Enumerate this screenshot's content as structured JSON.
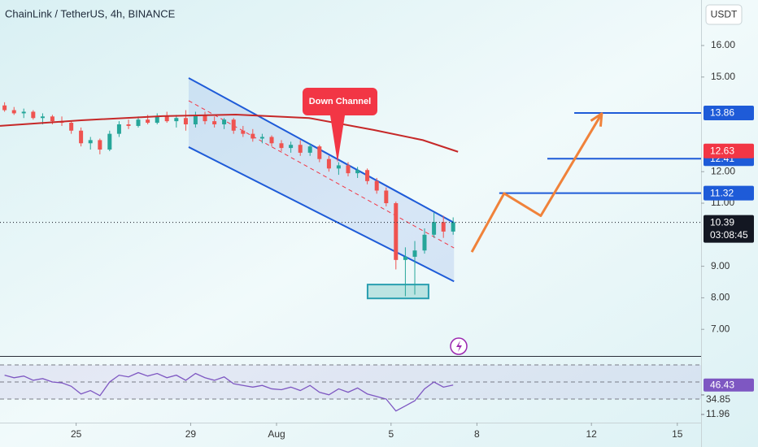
{
  "chart_data": {
    "type": "candlestick",
    "title": "ChainLink / TetherUS, 4h, BINANCE",
    "currency": "USDT",
    "countdown": "03:08:45",
    "annotation": "Down Channel",
    "xlim": [
      -9.66,
      14.83
    ],
    "ylim": [
      6.155,
      17.443
    ],
    "xticks": [
      {
        "value": -7,
        "label": "25"
      },
      {
        "value": -3,
        "label": "29"
      },
      {
        "value": 0,
        "label": "Aug"
      },
      {
        "value": 4,
        "label": "5"
      },
      {
        "value": 7,
        "label": "8"
      },
      {
        "value": 11,
        "label": "12"
      },
      {
        "value": 14,
        "label": "15"
      }
    ],
    "yticks": [
      {
        "value": 16,
        "label": "16.00"
      },
      {
        "value": 15,
        "label": "15.00"
      },
      {
        "value": 12,
        "label": "12.00"
      },
      {
        "value": 11,
        "label": "11.00"
      },
      {
        "value": 9,
        "label": "9.00"
      },
      {
        "value": 8,
        "label": "8.00"
      },
      {
        "value": 7,
        "label": "7.00"
      }
    ],
    "up_color": "#26a69a",
    "down_color": "#ef5350",
    "candles": {
      "x": [
        -9.5,
        -9.17,
        -8.83,
        -8.5,
        -8.17,
        -7.83,
        -7.5,
        -7.17,
        -6.83,
        -6.5,
        -6.17,
        -5.83,
        -5.5,
        -5.17,
        -4.83,
        -4.5,
        -4.17,
        -3.83,
        -3.5,
        -3.17,
        -2.83,
        -2.5,
        -2.17,
        -1.83,
        -1.5,
        -1.17,
        -0.83,
        -0.5,
        -0.17,
        0.17,
        0.5,
        0.83,
        1.17,
        1.5,
        1.83,
        2.17,
        2.5,
        2.83,
        3.17,
        3.5,
        3.83,
        4.17,
        4.5,
        4.83,
        5.17,
        5.5,
        5.83,
        6.17
      ],
      "open": [
        14.1,
        13.95,
        13.85,
        13.9,
        13.7,
        13.75,
        13.6,
        13.55,
        13.3,
        12.9,
        13.0,
        12.7,
        13.2,
        13.5,
        13.45,
        13.65,
        13.55,
        13.75,
        13.6,
        13.7,
        13.5,
        13.8,
        13.6,
        13.5,
        13.65,
        13.3,
        13.2,
        13.05,
        13.1,
        12.9,
        12.75,
        12.85,
        12.6,
        12.8,
        12.4,
        12.1,
        12.2,
        11.95,
        12.05,
        11.7,
        11.4,
        11.0,
        9.2,
        9.3,
        9.5,
        10.0,
        10.4,
        10.1
      ],
      "high": [
        14.2,
        14.05,
        14.0,
        13.95,
        13.85,
        13.8,
        13.75,
        13.6,
        13.4,
        13.1,
        13.05,
        13.3,
        13.6,
        13.65,
        13.75,
        13.8,
        13.85,
        13.9,
        13.8,
        13.95,
        13.9,
        13.9,
        13.75,
        13.7,
        13.7,
        13.45,
        13.35,
        13.2,
        13.15,
        13.0,
        12.95,
        13.0,
        12.9,
        12.85,
        12.5,
        12.3,
        12.3,
        12.15,
        12.1,
        11.8,
        11.5,
        11.05,
        9.6,
        9.8,
        10.2,
        10.7,
        10.6,
        10.55
      ],
      "low": [
        13.9,
        13.8,
        13.7,
        13.65,
        13.5,
        13.5,
        13.45,
        13.2,
        12.8,
        12.7,
        12.55,
        12.65,
        13.1,
        13.35,
        13.4,
        13.5,
        13.5,
        13.55,
        13.4,
        13.3,
        13.4,
        13.5,
        13.4,
        13.35,
        13.2,
        13.1,
        12.95,
        12.9,
        12.8,
        12.65,
        12.6,
        12.5,
        12.5,
        12.3,
        12.0,
        11.9,
        11.85,
        11.8,
        11.6,
        11.3,
        10.9,
        8.9,
        8.05,
        8.1,
        9.4,
        9.9,
        9.9,
        10.0
      ],
      "close": [
        13.95,
        13.85,
        13.9,
        13.7,
        13.75,
        13.6,
        13.55,
        13.3,
        12.9,
        13.0,
        12.7,
        13.2,
        13.5,
        13.45,
        13.65,
        13.55,
        13.75,
        13.6,
        13.7,
        13.5,
        13.8,
        13.6,
        13.5,
        13.65,
        13.3,
        13.2,
        13.05,
        13.1,
        12.9,
        12.75,
        12.85,
        12.6,
        12.8,
        12.4,
        12.1,
        12.2,
        11.95,
        12.05,
        11.7,
        11.4,
        11.0,
        9.2,
        9.3,
        9.5,
        10.0,
        10.4,
        10.1,
        10.39
      ]
    },
    "ma": {
      "color": "#c62828",
      "x": [
        -9.66,
        -6.82,
        -3.98,
        -1.42,
        1.14,
        3.41,
        5.11,
        6.34
      ],
      "values": [
        13.45,
        13.63,
        13.76,
        13.81,
        13.7,
        13.32,
        13.0,
        12.63
      ]
    },
    "channel": {
      "x": [
        -3.07,
        6.2
      ],
      "upper": [
        14.97,
        10.38
      ],
      "middle": [
        14.25,
        9.58
      ],
      "lower": [
        12.78,
        8.52
      ],
      "color": "#1e5bd8"
    },
    "hlines": [
      {
        "value": 13.86,
        "from": 10.4
      },
      {
        "value": 12.41,
        "from": 9.46
      },
      {
        "value": 11.32,
        "from": 7.78
      }
    ],
    "projection": {
      "color": "#f0823a",
      "x": [
        6.82,
        7.95,
        9.23,
        11.36
      ],
      "values": [
        9.45,
        11.31,
        10.6,
        13.84
      ]
    },
    "box": {
      "x": [
        3.18,
        5.31
      ],
      "y": [
        7.98,
        8.42
      ]
    },
    "rsi": {
      "color": "#7e57c2",
      "ylim": [
        2.4,
        78.6
      ],
      "levels": [
        70,
        50,
        30
      ],
      "values": [
        58,
        55,
        57,
        52,
        54,
        50,
        49,
        45,
        36,
        40,
        34,
        50,
        58,
        56,
        61,
        57,
        60,
        55,
        58,
        52,
        60,
        55,
        52,
        56,
        48,
        46,
        44,
        46,
        42,
        41,
        44,
        40,
        46,
        38,
        35,
        42,
        38,
        43,
        36,
        33,
        30,
        16,
        22,
        28,
        42,
        50,
        44,
        46.43
      ],
      "markers": [
        34.85,
        11.96
      ]
    }
  }
}
